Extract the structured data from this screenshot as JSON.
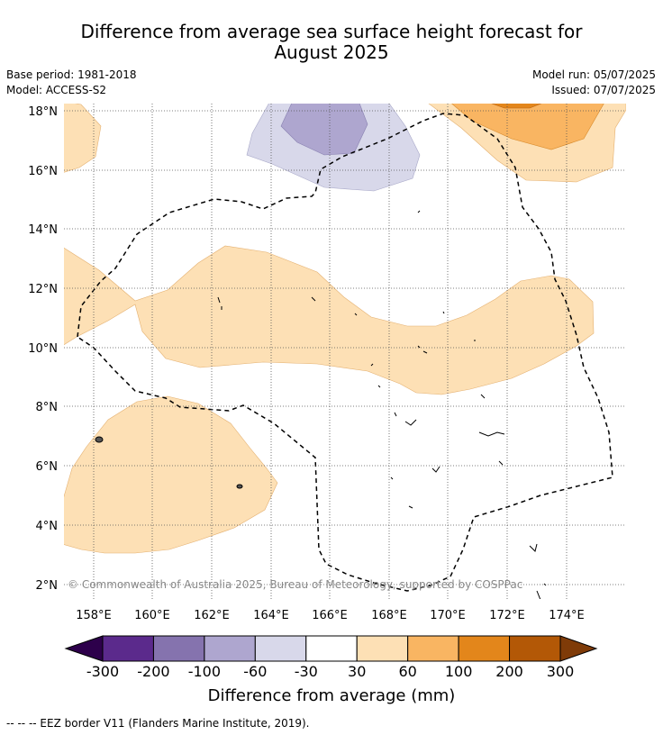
{
  "header": {
    "title_line1": "Difference from average sea surface height forecast for",
    "title_line2": "August 2025",
    "base_period": "Base period: 1981-2018",
    "model": "Model: ACCESS-S2",
    "model_run": "Model run: 05/07/2025",
    "issued": "Issued: 07/07/2025"
  },
  "map": {
    "lat_labels": [
      "18°N",
      "16°N",
      "14°N",
      "12°N",
      "10°N",
      "8°N",
      "6°N",
      "4°N",
      "2°N"
    ],
    "lon_labels": [
      "158°E",
      "160°E",
      "162°E",
      "164°E",
      "166°E",
      "168°E",
      "170°E",
      "172°E",
      "174°E"
    ],
    "copyright": "© Commonwealth of Australia 2025, Bureau of Meteorology, supported by COSPPac"
  },
  "colorbar": {
    "tick_labels": [
      "-300",
      "-200",
      "-100",
      "-60",
      "-30",
      "30",
      "60",
      "100",
      "200",
      "300"
    ],
    "colors": [
      "#5b2a8c",
      "#8573ae",
      "#aea6cf",
      "#d8d8ea",
      "#ffffff",
      "#fde0b5",
      "#f9b562",
      "#e3861b",
      "#b35806"
    ],
    "under_color": "#2d004b",
    "over_color": "#7f3b08",
    "title": "Difference from average (mm)"
  },
  "footer": {
    "legend": "--  --  -- EEZ border V11 (Flanders Marine Institute, 2019)."
  }
}
